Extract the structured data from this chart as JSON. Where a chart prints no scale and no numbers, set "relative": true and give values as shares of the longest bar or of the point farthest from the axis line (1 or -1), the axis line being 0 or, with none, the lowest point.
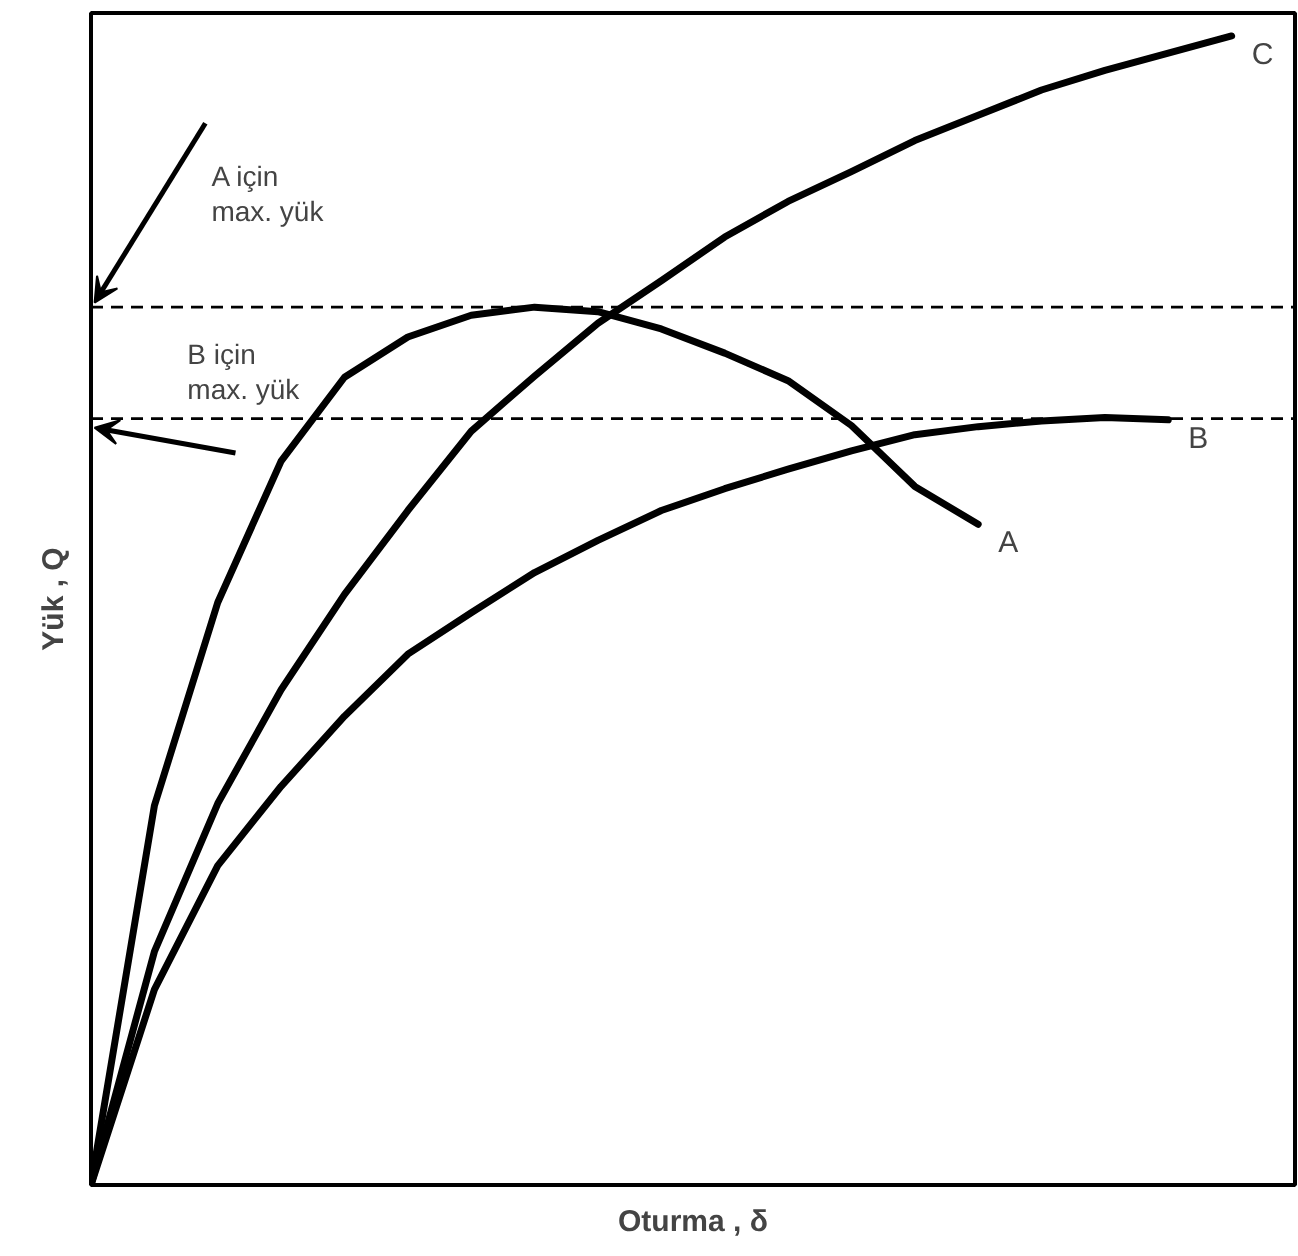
{
  "chart_data": {
    "type": "line",
    "relative": true,
    "xlabel": "Oturma , δ",
    "ylabel": "Yük , Q",
    "categories": [
      null,
      null,
      null,
      null,
      null,
      null,
      null,
      null,
      null,
      null,
      null,
      null,
      null,
      null,
      null,
      null,
      null,
      null,
      null
    ],
    "series": [
      {
        "name": "A",
        "color": "#000000",
        "values": [
          0,
          0.33,
          0.507,
          0.63,
          0.703,
          0.738,
          0.757,
          0.764,
          0.76,
          0.745,
          0.724,
          0.7,
          0.661,
          0.608,
          0.575,
          null,
          null,
          null,
          null
        ]
      },
      {
        "name": "B",
        "color": "#000000",
        "values": [
          0,
          0.17,
          0.278,
          0.347,
          0.408,
          0.462,
          0.498,
          0.533,
          0.561,
          0.587,
          0.606,
          0.623,
          0.639,
          0.653,
          0.66,
          0.665,
          0.668,
          0.666,
          null
        ]
      },
      {
        "name": "C",
        "color": "#000000",
        "values": [
          0,
          0.203,
          0.332,
          0.431,
          0.514,
          0.587,
          0.656,
          0.704,
          0.75,
          0.787,
          0.825,
          0.856,
          0.882,
          0.909,
          0.931,
          0.953,
          0.97,
          0.985,
          1
        ]
      }
    ],
    "ref_lines": [
      {
        "axis": "y",
        "value": 0.764,
        "label": "A için\nmax. yük",
        "line_style": "dashed",
        "color": "#000000"
      },
      {
        "axis": "y",
        "value": 0.667,
        "label": "B için\nmax. yük",
        "line_style": "dashed",
        "color": "#000000"
      }
    ]
  }
}
